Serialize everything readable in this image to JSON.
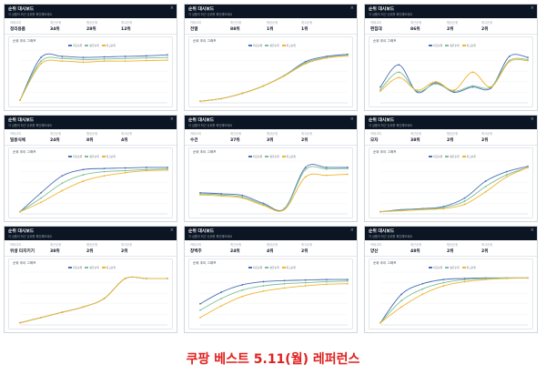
{
  "footer_text": "쿠팡 베스트 5.11(월) 레퍼런스",
  "colors": {
    "header_bg": "#0b1523",
    "series_1": "#4a6fb5",
    "series_2": "#7cbf95",
    "series_3": "#f0b430",
    "footer": "#e0201e"
  },
  "panels": [
    {
      "title": "순위 대시보드",
      "subtitle": "각 상품의 최근 순위를 확인해보세요",
      "stats": [
        {
          "label": "카테고리",
          "value": "정리용품"
        },
        {
          "label": "최근순위",
          "value": "34위"
        },
        {
          "label": "평균순위",
          "value": "28위"
        },
        {
          "label": "최고순위",
          "value": "12위"
        }
      ],
      "chart_title": "순위 추이 그래프",
      "legend": [
        "최근순위",
        "평균순위",
        "최고순위"
      ],
      "chart_data": {
        "type": "line",
        "series": [
          {
            "name": "최근순위",
            "values": [
              5,
              86,
              88,
              86,
              87,
              88,
              89,
              91
            ]
          },
          {
            "name": "평균순위",
            "values": [
              5,
              79,
              84,
              82,
              83,
              84,
              85,
              86
            ]
          },
          {
            "name": "최고순위",
            "values": [
              5,
              74,
              79,
              77,
              79,
              79,
              80,
              81
            ]
          }
        ]
      }
    },
    {
      "title": "순위 대시보드",
      "subtitle": "각 상품의 최근 순위를 확인해보세요",
      "stats": [
        {
          "label": "카테고리",
          "value": "전열"
        },
        {
          "label": "최근순위",
          "value": "88위"
        },
        {
          "label": "평균순위",
          "value": "1위"
        },
        {
          "label": "최고순위",
          "value": "1위"
        }
      ],
      "chart_title": "순위 추이 그래프",
      "legend": [
        "최근순위",
        "평균순위",
        "최고순위"
      ],
      "chart_data": {
        "type": "line",
        "series": [
          {
            "name": "최근순위",
            "values": [
              3,
              8,
              18,
              32,
              52,
              78,
              88,
              92
            ]
          },
          {
            "name": "평균순위",
            "values": [
              3,
              8,
              18,
              32,
              52,
              76,
              86,
              90
            ]
          },
          {
            "name": "최고순위",
            "values": [
              3,
              8,
              18,
              32,
              51,
              74,
              85,
              89
            ]
          }
        ]
      }
    },
    {
      "title": "순위 대시보드",
      "subtitle": "각 상품의 최근 순위를 확인해보세요",
      "stats": [
        {
          "label": "카테고리",
          "value": "편집대"
        },
        {
          "label": "최근순위",
          "value": "86위"
        },
        {
          "label": "평균순위",
          "value": "2위"
        },
        {
          "label": "최고순위",
          "value": "2위"
        }
      ],
      "chart_title": "순위 추이 그래프",
      "legend": [
        "최근순위",
        "평균순위",
        "최고순위"
      ],
      "chart_data": {
        "type": "line",
        "series": [
          {
            "name": "최근순위",
            "values": [
              30,
              72,
              20,
              38,
              20,
              30,
              28,
              88,
              86
            ]
          },
          {
            "name": "평균순위",
            "values": [
              25,
              58,
              22,
              36,
              22,
              32,
              30,
              80,
              82
            ]
          },
          {
            "name": "최고순위",
            "values": [
              22,
              48,
              24,
              40,
              24,
              58,
              30,
              78,
              80
            ]
          }
        ]
      }
    },
    {
      "title": "순위 대시보드",
      "subtitle": "각 상품의 최근 순위를 확인해보세요",
      "stats": [
        {
          "label": "카테고리",
          "value": "밀봉식체"
        },
        {
          "label": "최근순위",
          "value": "24위"
        },
        {
          "label": "평균순위",
          "value": "8위"
        },
        {
          "label": "최고순위",
          "value": "4위"
        }
      ],
      "chart_title": "순위 추이 그래프",
      "legend": [
        "최근순위",
        "평균순위",
        "최고순위"
      ],
      "chart_data": {
        "type": "line",
        "series": [
          {
            "name": "최근순위",
            "values": [
              4,
              40,
              72,
              84,
              86,
              87,
              88,
              88
            ]
          },
          {
            "name": "평균순위",
            "values": [
              4,
              30,
              58,
              74,
              80,
              82,
              84,
              85
            ]
          },
          {
            "name": "최고순위",
            "values": [
              4,
              22,
              44,
              62,
              72,
              78,
              82,
              83
            ]
          }
        ]
      }
    },
    {
      "title": "순위 대시보드",
      "subtitle": "각 상품의 최근 순위를 확인해보세요",
      "stats": [
        {
          "label": "카테고리",
          "value": "수건"
        },
        {
          "label": "최근순위",
          "value": "37위"
        },
        {
          "label": "평균순위",
          "value": "3위"
        },
        {
          "label": "최고순위",
          "value": "2위"
        }
      ],
      "chart_title": "순위 추이 그래프",
      "legend": [
        "최근순위",
        "평균순위",
        "최고순위"
      ],
      "chart_data": {
        "type": "line",
        "series": [
          {
            "name": "최근순위",
            "values": [
              40,
              38,
              35,
              20,
              10,
              88,
              88,
              88
            ]
          },
          {
            "name": "평균순위",
            "values": [
              38,
              36,
              32,
              18,
              9,
              84,
              85,
              86
            ]
          },
          {
            "name": "최고순위",
            "values": [
              36,
              34,
              30,
              16,
              8,
              70,
              73,
              75
            ]
          }
        ]
      }
    },
    {
      "title": "순위 대시보드",
      "subtitle": "각 상품의 최근 순위를 확인해보세요",
      "stats": [
        {
          "label": "카테고리",
          "value": "모자"
        },
        {
          "label": "최근순위",
          "value": "38위"
        },
        {
          "label": "평균순위",
          "value": "2위"
        },
        {
          "label": "최고순위",
          "value": "2위"
        }
      ],
      "chart_title": "순위 추이 그래프",
      "legend": [
        "최근순위",
        "평균순위",
        "최고순위"
      ],
      "chart_data": {
        "type": "line",
        "series": [
          {
            "name": "최근순위",
            "values": [
              4,
              8,
              10,
              14,
              30,
              62,
              80,
              90
            ]
          },
          {
            "name": "평균순위",
            "values": [
              4,
              7,
              9,
              12,
              24,
              52,
              74,
              88
            ]
          },
          {
            "name": "최고순위",
            "values": [
              4,
              6,
              8,
              10,
              18,
              42,
              70,
              88
            ]
          }
        ]
      }
    },
    {
      "title": "순위 대시보드",
      "subtitle": "각 상품의 최근 순위를 확인해보세요",
      "stats": [
        {
          "label": "카테고리",
          "value": "위생 타지키기"
        },
        {
          "label": "최근순위",
          "value": "38위"
        },
        {
          "label": "평균순위",
          "value": "2위"
        },
        {
          "label": "최고순위",
          "value": "2위"
        }
      ],
      "chart_title": "순위 추이 그래프",
      "legend": [
        "최근순위",
        "평균순위",
        "최고순위"
      ],
      "chart_data": {
        "type": "line",
        "series": [
          {
            "name": "최근순위",
            "values": [
              4,
              14,
              24,
              34,
              50,
              88,
              88,
              88
            ]
          },
          {
            "name": "평균순위",
            "values": [
              4,
              14,
              24,
              34,
              50,
              88,
              88,
              88
            ]
          },
          {
            "name": "최고순위",
            "values": [
              4,
              14,
              24,
              34,
              50,
              88,
              88,
              88
            ]
          }
        ]
      }
    },
    {
      "title": "순위 대시보드",
      "subtitle": "각 상품의 최근 순위를 확인해보세요",
      "stats": [
        {
          "label": "카테고리",
          "value": "창백추"
        },
        {
          "label": "최근순위",
          "value": "24위"
        },
        {
          "label": "평균순위",
          "value": "4위"
        },
        {
          "label": "최고순위",
          "value": "2위"
        }
      ],
      "chart_title": "순위 추이 그래프",
      "legend": [
        "최근순위",
        "평균순위",
        "최고순위"
      ],
      "chart_data": {
        "type": "line",
        "series": [
          {
            "name": "최근순위",
            "values": [
              40,
              62,
              76,
              82,
              84,
              85,
              86,
              86
            ]
          },
          {
            "name": "평균순위",
            "values": [
              28,
              50,
              66,
              74,
              78,
              80,
              82,
              83
            ]
          },
          {
            "name": "최고순위",
            "values": [
              14,
              36,
              54,
              64,
              70,
              74,
              77,
              78
            ]
          }
        ]
      }
    },
    {
      "title": "순위 대시보드",
      "subtitle": "각 상품의 최근 순위를 확인해보세요",
      "stats": [
        {
          "label": "카테고리",
          "value": "양산"
        },
        {
          "label": "최근순위",
          "value": "48위"
        },
        {
          "label": "평균순위",
          "value": "2위"
        },
        {
          "label": "최고순위",
          "value": "2위"
        }
      ],
      "chart_title": "순위 추이 그래프",
      "legend": [
        "최근순위",
        "평균순위",
        "최고순위"
      ],
      "chart_data": {
        "type": "line",
        "series": [
          {
            "name": "최근순위",
            "values": [
              4,
              58,
              78,
              86,
              88,
              89,
              89,
              89
            ]
          },
          {
            "name": "평균순위",
            "values": [
              4,
              46,
              68,
              80,
              86,
              88,
              89,
              89
            ]
          },
          {
            "name": "최고순위",
            "values": [
              4,
              34,
              58,
              74,
              82,
              86,
              88,
              89
            ]
          }
        ]
      }
    }
  ]
}
